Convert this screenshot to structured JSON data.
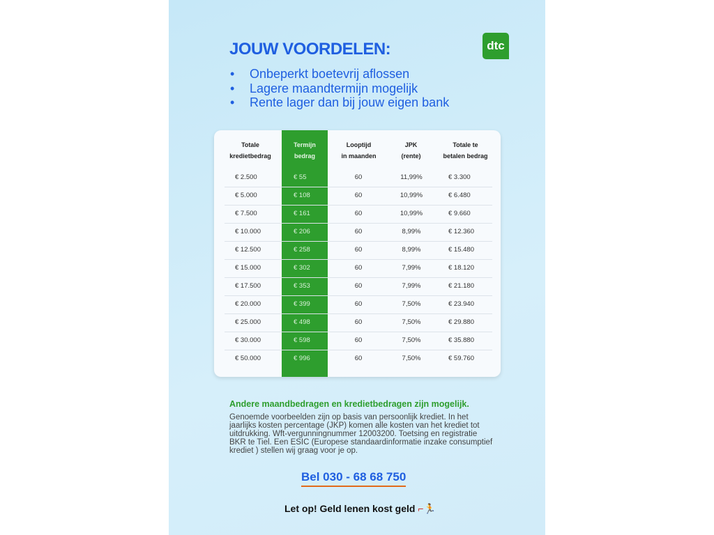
{
  "title": "JOUW VOORDELEN:",
  "logo": "dtc",
  "bullets": [
    "Onbeperkt boetevrij aflossen",
    "Lagere maandtermijn mogelijk",
    "Rente lager dan bij jouw eigen bank"
  ],
  "table": {
    "headers": [
      [
        "Totale",
        "kredietbedrag"
      ],
      [
        "Termijn",
        "bedrag"
      ],
      [
        "Looptijd",
        "in maanden"
      ],
      [
        "JPK",
        "(rente)"
      ],
      [
        "Totale te",
        "betalen bedrag"
      ]
    ],
    "rows": [
      [
        "€ 2.500",
        "€ 55",
        "60",
        "11,99%",
        "€ 3.300"
      ],
      [
        "€ 5.000",
        "€ 108",
        "60",
        "10,99%",
        "€ 6.480"
      ],
      [
        "€ 7.500",
        "€ 161",
        "60",
        "10,99%",
        "€ 9.660"
      ],
      [
        "€ 10.000",
        "€ 206",
        "60",
        "8,99%",
        "€ 12.360"
      ],
      [
        "€ 12.500",
        "€ 258",
        "60",
        "8,99%",
        "€ 15.480"
      ],
      [
        "€ 15.000",
        "€ 302",
        "60",
        "7,99%",
        "€ 18.120"
      ],
      [
        "€ 17.500",
        "€ 353",
        "60",
        "7,99%",
        "€ 21.180"
      ],
      [
        "€ 20.000",
        "€ 399",
        "60",
        "7,50%",
        "€ 23.940"
      ],
      [
        "€ 25.000",
        "€ 498",
        "60",
        "7,50%",
        "€ 29.880"
      ],
      [
        "€ 30.000",
        "€ 598",
        "60",
        "7,50%",
        "€ 35.880"
      ],
      [
        "€ 50.000",
        "€ 996",
        "60",
        "7,50%",
        "€ 59.760"
      ]
    ]
  },
  "subheading": "Andere maandbedragen en kredietbedragen zijn mogelijk.",
  "paragraph": "Genoemde voorbeelden zijn op basis van persoonlijk krediet. In het jaarlijks kosten percentage (JKP) komen alle kosten van het krediet tot uitdrukking. Wft-vergunningnummer 12003200. Toetsing en registratie BKR te Tiel. Een ESIC (Europese standaardinformatie inzake consumptief krediet ) stellen wij graag voor je op.",
  "phone": "Bel 030 - 68 68 750",
  "warning": "Let op! Geld lenen kost geld",
  "colors": {
    "blue": "#1f5fe0",
    "green": "#2e9e2e",
    "accent_underline": "#e26a1a"
  }
}
